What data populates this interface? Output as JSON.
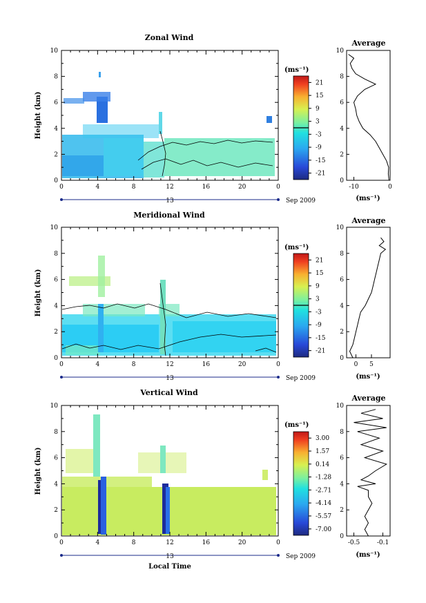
{
  "chart_data": [
    {
      "type": "heatmap",
      "title": "Zonal Wind",
      "ylabel": "Height (km)",
      "xlabel": "",
      "ylim": [
        0,
        10
      ],
      "xlim": [
        0,
        24
      ],
      "x_ticks": [
        "0",
        "4",
        "8",
        "12",
        "16",
        "20",
        "0"
      ],
      "y_ticks": [
        "0",
        "2",
        "4",
        "6",
        "8",
        "10"
      ],
      "date_label": "13",
      "date_suffix": "Sep 2009",
      "colorbar": {
        "unit": "(ms⁻¹)",
        "ticks": [
          "21",
          "15",
          "9",
          "3",
          "-3",
          "-9",
          "-15",
          "-21"
        ],
        "range": [
          -24,
          24
        ]
      },
      "average": {
        "title": "Average",
        "xlabel": "(ms⁻¹)",
        "x_ticks": [
          "-10",
          "0"
        ],
        "xlim": [
          -12,
          0
        ],
        "profile": [
          [
            -0.3,
            0.0
          ],
          [
            -0.5,
            0.5
          ],
          [
            -0.4,
            1.0
          ],
          [
            -1.0,
            1.5
          ],
          [
            -2.0,
            2.0
          ],
          [
            -3.0,
            2.5
          ],
          [
            -4.0,
            3.0
          ],
          [
            -5.5,
            3.5
          ],
          [
            -7.5,
            4.0
          ],
          [
            -8.5,
            4.5
          ],
          [
            -9.2,
            5.0
          ],
          [
            -9.5,
            5.5
          ],
          [
            -10.0,
            6.0
          ],
          [
            -9.0,
            6.5
          ],
          [
            -7.0,
            7.0
          ],
          [
            -4.0,
            7.4
          ],
          [
            -7.0,
            7.8
          ],
          [
            -9.5,
            8.2
          ],
          [
            -10.5,
            8.6
          ],
          [
            -11.0,
            9.0
          ],
          [
            -10.0,
            9.4
          ],
          [
            -11.5,
            9.7
          ]
        ]
      }
    },
    {
      "type": "heatmap",
      "title": "Meridional Wind",
      "ylabel": "Height (km)",
      "xlabel": "",
      "ylim": [
        0,
        10
      ],
      "xlim": [
        0,
        24
      ],
      "x_ticks": [
        "0",
        "4",
        "8",
        "12",
        "16",
        "20",
        "0"
      ],
      "y_ticks": [
        "0",
        "2",
        "4",
        "6",
        "8",
        "10"
      ],
      "date_label": "13",
      "date_suffix": "Sep 2009",
      "colorbar": {
        "unit": "(ms⁻¹)",
        "ticks": [
          "21",
          "15",
          "9",
          "3",
          "-3",
          "-9",
          "-15",
          "-21"
        ],
        "range": [
          -24,
          24
        ]
      },
      "average": {
        "title": "Average",
        "xlabel": "(ms⁻¹)",
        "x_ticks": [
          "0",
          "5"
        ],
        "xlim": [
          -3,
          11
        ],
        "profile": [
          [
            -1.0,
            0.0
          ],
          [
            -2.0,
            0.5
          ],
          [
            -1.0,
            1.0
          ],
          [
            -0.5,
            1.5
          ],
          [
            0.0,
            2.0
          ],
          [
            0.5,
            2.5
          ],
          [
            1.0,
            3.0
          ],
          [
            1.5,
            3.5
          ],
          [
            3.0,
            4.0
          ],
          [
            4.0,
            4.5
          ],
          [
            5.0,
            5.0
          ],
          [
            5.5,
            5.5
          ],
          [
            6.0,
            6.0
          ],
          [
            6.5,
            6.5
          ],
          [
            7.0,
            7.0
          ],
          [
            7.5,
            7.5
          ],
          [
            8.0,
            8.0
          ],
          [
            9.5,
            8.3
          ],
          [
            7.5,
            8.6
          ],
          [
            9.0,
            8.9
          ],
          [
            8.0,
            9.2
          ]
        ]
      }
    },
    {
      "type": "heatmap",
      "title": "Vertical Wind",
      "ylabel": "Height (km)",
      "xlabel": "Local Time",
      "ylim": [
        0,
        10
      ],
      "xlim": [
        0,
        24
      ],
      "x_ticks": [
        "0",
        "4",
        "8",
        "12",
        "16",
        "20",
        "0"
      ],
      "y_ticks": [
        "0",
        "2",
        "4",
        "6",
        "8",
        "10"
      ],
      "date_label": "13",
      "date_suffix": "Sep 2009",
      "colorbar": {
        "unit": "(ms⁻¹)",
        "ticks": [
          "3.00",
          "1.57",
          "0.14",
          "-1.28",
          "-2.71",
          "-4.14",
          "-5.57",
          "-7.00"
        ],
        "range": [
          -7.7,
          3.7
        ]
      },
      "average": {
        "title": "Average",
        "xlabel": "(ms⁻¹)",
        "x_ticks": [
          "-0.5",
          "-0.1"
        ],
        "xlim": [
          -0.6,
          0.0
        ],
        "profile": [
          [
            -0.3,
            0.0
          ],
          [
            -0.35,
            0.5
          ],
          [
            -0.3,
            1.0
          ],
          [
            -0.35,
            1.5
          ],
          [
            -0.3,
            2.0
          ],
          [
            -0.25,
            2.5
          ],
          [
            -0.3,
            3.0
          ],
          [
            -0.3,
            3.5
          ],
          [
            -0.45,
            3.8
          ],
          [
            -0.2,
            4.0
          ],
          [
            -0.4,
            4.3
          ],
          [
            -0.3,
            4.6
          ],
          [
            -0.2,
            5.0
          ],
          [
            -0.05,
            5.5
          ],
          [
            -0.35,
            6.0
          ],
          [
            -0.1,
            6.5
          ],
          [
            -0.4,
            7.0
          ],
          [
            -0.15,
            7.5
          ],
          [
            -0.45,
            8.0
          ],
          [
            -0.05,
            8.3
          ],
          [
            -0.5,
            8.7
          ],
          [
            -0.1,
            9.0
          ],
          [
            -0.4,
            9.4
          ],
          [
            -0.2,
            9.7
          ]
        ]
      }
    }
  ]
}
